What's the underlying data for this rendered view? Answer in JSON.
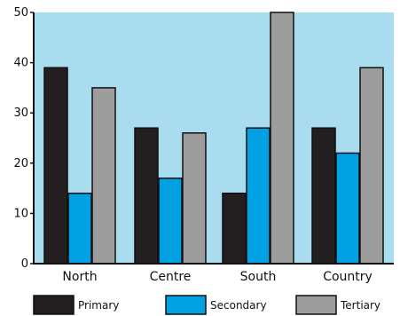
{
  "colors": {
    "plot_background": "#a9dcef",
    "axis": "#111111",
    "series": [
      "#231f20",
      "#00a0e3",
      "#9d9d9d"
    ]
  },
  "chart_data": {
    "type": "bar",
    "categories": [
      "North",
      "Centre",
      "South",
      "Country"
    ],
    "series": [
      {
        "name": "Primary",
        "values": [
          39,
          27,
          14,
          27
        ]
      },
      {
        "name": "Secondary",
        "values": [
          14,
          17,
          27,
          22
        ]
      },
      {
        "name": "Tertiary",
        "values": [
          35,
          26,
          50,
          39
        ]
      }
    ],
    "yticks": [
      0,
      10,
      20,
      30,
      40,
      50
    ],
    "ylim": [
      0,
      50
    ],
    "xlabel": "",
    "ylabel": "",
    "title": "",
    "grid": false,
    "legend_position": "bottom"
  }
}
